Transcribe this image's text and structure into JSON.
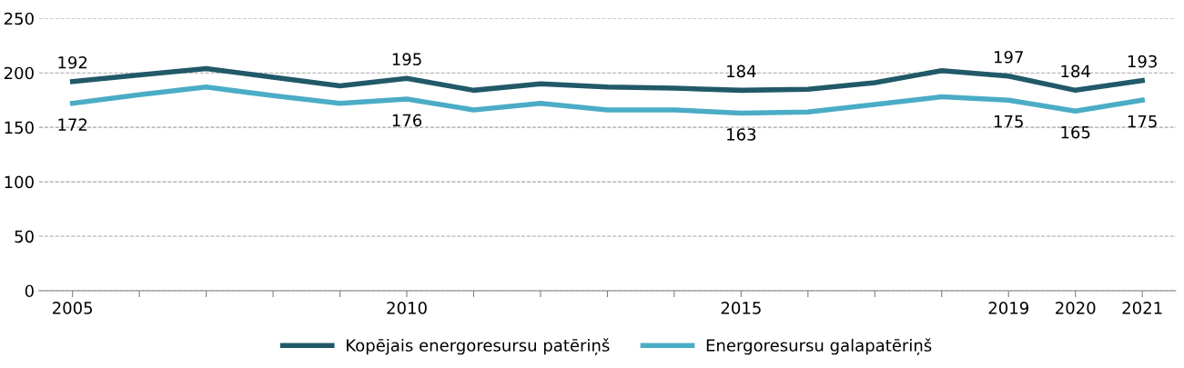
{
  "chart_data": {
    "type": "line",
    "categories": [
      "2005",
      null,
      null,
      null,
      null,
      "2010",
      null,
      null,
      null,
      null,
      "2015",
      null,
      null,
      null,
      "2019",
      "2020",
      "2021"
    ],
    "series": [
      {
        "name": "Kopējais energoresursu patēriņš",
        "color": "#215968",
        "values": [
          192,
          198,
          204,
          196,
          188,
          195,
          184,
          190,
          187,
          186,
          184,
          185,
          191,
          202,
          197,
          184,
          193
        ],
        "value_labels": [
          "192",
          null,
          null,
          null,
          null,
          "195",
          null,
          null,
          null,
          null,
          "184",
          null,
          null,
          null,
          "197",
          "184",
          "193"
        ]
      },
      {
        "name": "Energoresursu galapatēriņš",
        "color": "#4bacc6",
        "values": [
          172,
          180,
          187,
          179,
          172,
          176,
          166,
          172,
          166,
          166,
          163,
          164,
          171,
          178,
          175,
          165,
          175
        ],
        "value_labels": [
          "172",
          null,
          null,
          null,
          null,
          "176",
          null,
          null,
          null,
          null,
          "163",
          null,
          null,
          null,
          "175",
          "165",
          "175"
        ]
      }
    ],
    "ylim": [
      0,
      250
    ],
    "yticks": [
      0,
      50,
      100,
      150,
      200,
      250
    ],
    "grid": "y",
    "legend": "bottom",
    "marker": "none",
    "line_style": "solid"
  }
}
